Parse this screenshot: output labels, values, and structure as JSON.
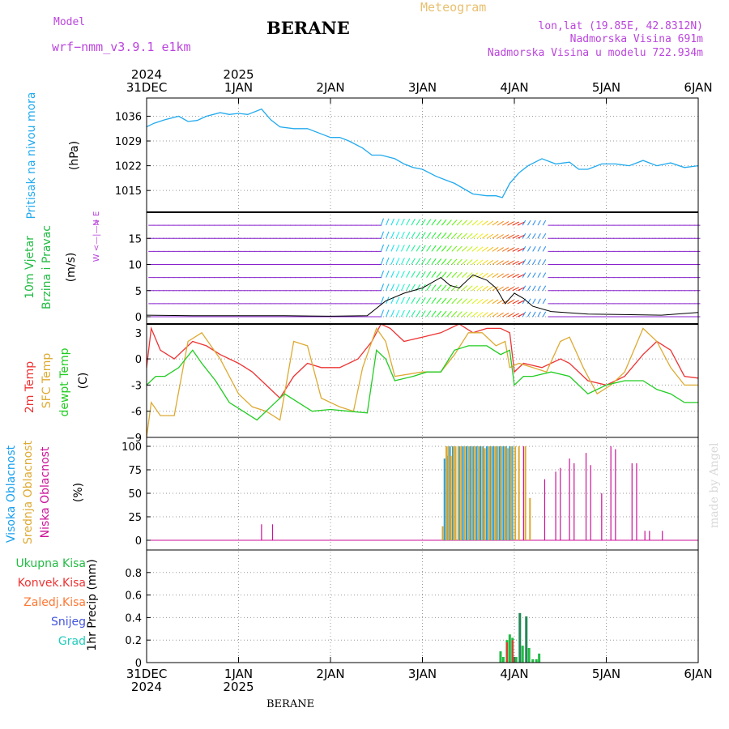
{
  "header": {
    "model_label": "Model",
    "model_name": "wrf−nmm_v3.9.1  e1km",
    "station": "BERANE",
    "product": "Meteogram",
    "coords": "lon,lat (19.85E, 42.8312N)",
    "altitude": "Nadmorska Visina 691m",
    "model_altitude": "Nadmorska Visina u modelu 722.934m"
  },
  "footer": {
    "station": "BERANE",
    "credit": "made by Angel"
  },
  "time_axis": {
    "ticks": [
      "31DEC",
      "1JAN",
      "2JAN",
      "3JAN",
      "4JAN",
      "5JAN",
      "6JAN"
    ],
    "years_top": [
      {
        "day": 0,
        "label": "2024"
      },
      {
        "day": 1,
        "label": "2025"
      }
    ],
    "years_bottom": [
      {
        "day": 0,
        "label": "2024"
      },
      {
        "day": 1,
        "label": "2025"
      }
    ],
    "range_days": [
      0,
      6
    ]
  },
  "colors": {
    "pressure": "#22aaee",
    "temp2m": "#ee3333",
    "sfctemp": "#ddaa33",
    "dewpt": "#22cc22",
    "cloud_high": "#1aa0ee",
    "cloud_mid": "#ddaa33",
    "cloud_low": "#cc1199",
    "precip_total": "#22bb44",
    "precip_conv": "#ee3333",
    "precip_frz": "#ff7733",
    "precip_snow": "#4455dd",
    "precip_grad": "#22ccbb",
    "wind_legend": "#bb44dd"
  },
  "panels": {
    "pressure": {
      "label": "Pritisak na nivou mora",
      "unit": "(hPa)"
    },
    "wind": {
      "label1": "10m Vjetar",
      "label2": "Brzina i Pravac",
      "unit": "(m/s)",
      "compass": {
        "n": "N",
        "w": "W",
        "e": "E",
        "s": "S"
      }
    },
    "temp": {
      "l1": "2m Temp",
      "l2": "SFC Temp",
      "l3": "dewpt Temp",
      "unit": "(C)"
    },
    "cloud": {
      "l1": "Visoka Oblacnost",
      "l2": "Srednja Oblacnost",
      "l3": "Niska Oblacnost",
      "unit": "(%)"
    },
    "precip": {
      "unit": "1hr Precip (mm)",
      "legend": [
        "Ukupna Kisa",
        "Konvek.Kisa",
        "Zaledj.Kisa",
        "Snijeg",
        "Grad"
      ]
    }
  },
  "chart_data": [
    {
      "type": "line",
      "name": "pressure",
      "ylim": [
        1010,
        1040
      ],
      "ticks": [
        1015,
        1022,
        1029,
        1036
      ],
      "series": [
        {
          "name": "",
          "x": [
            0,
            0.08,
            0.2,
            0.35,
            0.45,
            0.55,
            0.65,
            0.8,
            0.9,
            1.0,
            1.1,
            1.25,
            1.35,
            1.45,
            1.6,
            1.75,
            1.9,
            2.0,
            2.1,
            2.2,
            2.35,
            2.45,
            2.55,
            2.7,
            2.8,
            2.9,
            3.0,
            3.15,
            3.25,
            3.35,
            3.45,
            3.55,
            3.7,
            3.8,
            3.87,
            3.95,
            4.05,
            4.15,
            4.3,
            4.45,
            4.6,
            4.7,
            4.8,
            4.95,
            5.1,
            5.25,
            5.4,
            5.55,
            5.7,
            5.85,
            6.0
          ],
          "values": [
            1033,
            1034,
            1035,
            1036,
            1034.5,
            1034.8,
            1036,
            1037,
            1036.5,
            1036.8,
            1036.5,
            1038,
            1035,
            1033,
            1032.5,
            1032.5,
            1031,
            1030,
            1030,
            1029,
            1027,
            1025,
            1025,
            1024,
            1022.5,
            1021.5,
            1021,
            1019,
            1018,
            1017,
            1015.5,
            1014,
            1013.5,
            1013.5,
            1013,
            1017,
            1020,
            1022,
            1024,
            1022.5,
            1023,
            1021,
            1021,
            1022.5,
            1022.5,
            1022,
            1023.5,
            1022,
            1022.8,
            1021.5,
            1022
          ]
        }
      ]
    },
    {
      "type": "line",
      "name": "wind",
      "ylim": [
        0,
        20
      ],
      "ticks": [
        0,
        5,
        10,
        15
      ],
      "series": [
        {
          "name": "",
          "x": [
            0,
            0.5,
            1.0,
            1.5,
            2.0,
            2.4,
            2.6,
            2.8,
            3.0,
            3.1,
            3.2,
            3.3,
            3.4,
            3.55,
            3.7,
            3.8,
            3.9,
            4.0,
            4.1,
            4.2,
            4.4,
            4.8,
            5.2,
            5.6,
            6.0
          ],
          "values": [
            0.3,
            0.2,
            0.2,
            0.2,
            0.1,
            0.2,
            3.0,
            4.5,
            5.5,
            6.5,
            7.5,
            6.0,
            5.5,
            8.0,
            7.0,
            5.5,
            2.5,
            4.5,
            3.5,
            2.0,
            1.0,
            0.5,
            0.4,
            0.3,
            0.8
          ]
        }
      ]
    },
    {
      "type": "line",
      "name": "temperature",
      "ylim": [
        -9,
        4
      ],
      "ticks": [
        3,
        0,
        -3,
        -6,
        -9
      ],
      "series": [
        {
          "name": "2m Temp",
          "x": [
            0,
            0.05,
            0.15,
            0.3,
            0.5,
            0.65,
            0.8,
            1.0,
            1.15,
            1.3,
            1.45,
            1.6,
            1.75,
            1.9,
            2.1,
            2.3,
            2.45,
            2.55,
            2.65,
            2.8,
            3.0,
            3.2,
            3.4,
            3.55,
            3.7,
            3.85,
            3.95,
            4.0,
            4.1,
            4.3,
            4.5,
            4.6,
            4.8,
            5.0,
            5.2,
            5.4,
            5.55,
            5.7,
            5.85,
            6.0
          ],
          "values": [
            -1,
            3.5,
            1,
            0,
            2,
            1.5,
            0.5,
            -0.5,
            -1.5,
            -3,
            -4.5,
            -2,
            -0.5,
            -1,
            -1,
            0,
            2,
            4,
            3.5,
            2,
            2.5,
            3,
            4,
            3,
            3.5,
            3.5,
            3,
            -1.5,
            -0.5,
            -1,
            0,
            -0.5,
            -2.5,
            -3,
            -2,
            0.5,
            2,
            1,
            -2,
            -2.2
          ]
        },
        {
          "name": "SFC Temp",
          "x": [
            0,
            0.05,
            0.15,
            0.3,
            0.45,
            0.6,
            0.8,
            1.0,
            1.15,
            1.3,
            1.45,
            1.6,
            1.75,
            1.9,
            2.1,
            2.25,
            2.35,
            2.5,
            2.6,
            2.7,
            3.0,
            3.2,
            3.35,
            3.5,
            3.65,
            3.8,
            3.9,
            3.95,
            4.05,
            4.2,
            4.35,
            4.5,
            4.6,
            4.75,
            4.9,
            5.05,
            5.2,
            5.4,
            5.55,
            5.7,
            5.85,
            6.0
          ],
          "values": [
            -9,
            -5,
            -6.5,
            -6.5,
            2,
            3,
            0,
            -4,
            -5.5,
            -6,
            -7,
            2,
            1.5,
            -4.5,
            -5.5,
            -6,
            -1,
            3.5,
            2,
            -2,
            -1.5,
            -1.5,
            0.5,
            3,
            3,
            1.5,
            2,
            -1,
            -0.5,
            -1,
            -1.5,
            2,
            2.5,
            -1,
            -4,
            -3,
            -1.5,
            3.5,
            2,
            -1,
            -3,
            -3
          ]
        },
        {
          "name": "dewpt Temp",
          "x": [
            0,
            0.1,
            0.2,
            0.35,
            0.5,
            0.6,
            0.75,
            0.9,
            1.05,
            1.2,
            1.35,
            1.5,
            1.65,
            1.8,
            2.0,
            2.2,
            2.4,
            2.5,
            2.6,
            2.7,
            2.9,
            3.05,
            3.2,
            3.35,
            3.5,
            3.7,
            3.85,
            3.95,
            4.0,
            4.1,
            4.2,
            4.4,
            4.6,
            4.8,
            5.0,
            5.2,
            5.4,
            5.55,
            5.7,
            5.85,
            6.0
          ],
          "values": [
            -3,
            -2,
            -2,
            -1,
            1,
            -0.5,
            -2.5,
            -5,
            -6,
            -7,
            -5.5,
            -4,
            -5,
            -6,
            -5.8,
            -6,
            -6.2,
            1,
            0,
            -2.5,
            -2,
            -1.5,
            -1.5,
            1,
            1.5,
            1.5,
            0.5,
            1,
            -3,
            -2,
            -2,
            -1.5,
            -2,
            -4,
            -3,
            -2.5,
            -2.5,
            -3.5,
            -4,
            -5,
            -5
          ]
        }
      ]
    },
    {
      "type": "bar",
      "name": "cloud",
      "ylim": [
        0,
        100
      ],
      "ticks": [
        0,
        25,
        50,
        75,
        100
      ],
      "series": [
        {
          "name": "Niska Oblacnost",
          "x": [
            1.25,
            1.37,
            4.1,
            4.33,
            4.45,
            4.5,
            4.6,
            4.65,
            4.78,
            4.83,
            4.95,
            5.05,
            5.1,
            5.28,
            5.33,
            5.42,
            5.47,
            5.61
          ],
          "values": [
            17,
            17,
            100,
            65,
            73,
            77,
            87,
            82,
            93,
            80,
            50,
            100,
            97,
            82,
            82,
            10,
            10,
            10
          ]
        },
        {
          "name": "Srednja Oblacnost",
          "x": [
            3.22,
            3.26,
            3.28,
            3.31,
            3.34,
            3.36,
            3.39,
            3.42,
            3.46,
            3.5,
            3.54,
            3.57,
            3.61,
            3.65,
            3.68,
            3.72,
            3.75,
            3.79,
            3.82,
            3.86,
            3.9,
            3.93,
            3.97,
            4.01,
            4.05,
            4.12,
            4.17
          ],
          "values": [
            15,
            100,
            100,
            90,
            100,
            100,
            100,
            100,
            100,
            100,
            100,
            100,
            100,
            100,
            98,
            100,
            100,
            100,
            100,
            100,
            100,
            98,
            100,
            100,
            100,
            100,
            45
          ]
        },
        {
          "name": "Visoka Oblacnost",
          "x": [
            3.24,
            3.27,
            3.3,
            3.33,
            3.36,
            3.4,
            3.44,
            3.48,
            3.52,
            3.55,
            3.59,
            3.63,
            3.66,
            3.7,
            3.74,
            3.77,
            3.81,
            3.84,
            3.88,
            3.91,
            3.95,
            3.98
          ],
          "values": [
            87,
            90,
            100,
            100,
            100,
            100,
            100,
            100,
            100,
            100,
            100,
            100,
            100,
            100,
            100,
            100,
            100,
            100,
            100,
            100,
            100,
            100
          ]
        }
      ]
    },
    {
      "type": "bar",
      "name": "precip",
      "ylim": [
        0,
        1
      ],
      "ticks": [
        0,
        0.2,
        0.4,
        0.6,
        0.8
      ],
      "series": [
        {
          "name": "Ukupna Kisa",
          "x": [
            3.85,
            3.88,
            3.92,
            3.95,
            3.98,
            4.02,
            4.06,
            4.09,
            4.13,
            4.16,
            4.2,
            4.24,
            4.27
          ],
          "values": [
            0.1,
            0.05,
            0.2,
            0.25,
            0.22,
            0.05,
            0.44,
            0.15,
            0.41,
            0.13,
            0.03,
            0.03,
            0.08
          ]
        },
        {
          "name": "Konvek.Kisa",
          "x": [
            3.92,
            3.98
          ],
          "values": [
            0.18,
            0.2
          ]
        }
      ]
    }
  ]
}
